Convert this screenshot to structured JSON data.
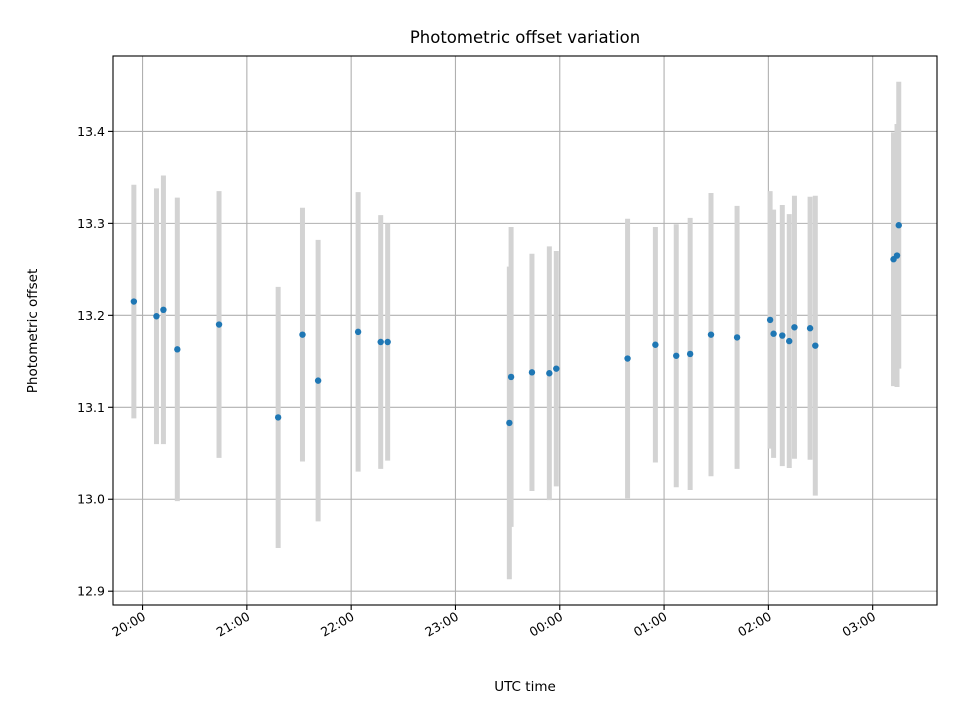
{
  "chart_data": {
    "type": "scatter",
    "title": "Photometric offset variation",
    "xlabel": "UTC time",
    "ylabel": "Photometric offset",
    "x_tick_labels": [
      "20:00",
      "21:00",
      "22:00",
      "23:00",
      "00:00",
      "01:00",
      "02:00",
      "03:00"
    ],
    "y_tick_labels": [
      "12.9",
      "13.0",
      "13.1",
      "13.2",
      "13.3",
      "13.4"
    ],
    "y_ticks": [
      12.9,
      13.0,
      13.1,
      13.2,
      13.3,
      13.4
    ],
    "ylim": [
      12.885,
      13.482
    ],
    "xlim": [
      "19:43",
      "03:37"
    ],
    "grid": true,
    "colors": {
      "point": "#1f77b4",
      "errorbar": "#d3d3d3",
      "grid": "#b0b0b0"
    },
    "points": [
      {
        "x": "19:55",
        "y": 13.215,
        "yerr": 0.127
      },
      {
        "x": "20:08",
        "y": 13.199,
        "yerr": 0.139
      },
      {
        "x": "20:12",
        "y": 13.206,
        "yerr": 0.146
      },
      {
        "x": "20:20",
        "y": 13.163,
        "yerr": 0.165
      },
      {
        "x": "20:44",
        "y": 13.19,
        "yerr": 0.145
      },
      {
        "x": "21:18",
        "y": 13.089,
        "yerr": 0.142
      },
      {
        "x": "21:32",
        "y": 13.179,
        "yerr": 0.138
      },
      {
        "x": "21:41",
        "y": 13.129,
        "yerr": 0.153
      },
      {
        "x": "22:04",
        "y": 13.182,
        "yerr": 0.152
      },
      {
        "x": "22:17",
        "y": 13.171,
        "yerr": 0.138
      },
      {
        "x": "22:21",
        "y": 13.171,
        "yerr": 0.129
      },
      {
        "x": "23:31",
        "y": 13.083,
        "yerr": 0.17
      },
      {
        "x": "23:32",
        "y": 13.133,
        "yerr": 0.163
      },
      {
        "x": "23:44",
        "y": 13.138,
        "yerr": 0.129
      },
      {
        "x": "23:54",
        "y": 13.137,
        "yerr": 0.138
      },
      {
        "x": "23:58",
        "y": 13.142,
        "yerr": 0.128
      },
      {
        "x": "00:39",
        "y": 13.153,
        "yerr": 0.152
      },
      {
        "x": "00:55",
        "y": 13.168,
        "yerr": 0.128
      },
      {
        "x": "01:07",
        "y": 13.156,
        "yerr": 0.143
      },
      {
        "x": "01:15",
        "y": 13.158,
        "yerr": 0.148
      },
      {
        "x": "01:27",
        "y": 13.179,
        "yerr": 0.154
      },
      {
        "x": "01:42",
        "y": 13.176,
        "yerr": 0.143
      },
      {
        "x": "02:01",
        "y": 13.195,
        "yerr": 0.14
      },
      {
        "x": "02:03",
        "y": 13.18,
        "yerr": 0.135
      },
      {
        "x": "02:08",
        "y": 13.178,
        "yerr": 0.142
      },
      {
        "x": "02:12",
        "y": 13.172,
        "yerr": 0.138
      },
      {
        "x": "02:15",
        "y": 13.187,
        "yerr": 0.143
      },
      {
        "x": "02:24",
        "y": 13.186,
        "yerr": 0.143
      },
      {
        "x": "02:27",
        "y": 13.167,
        "yerr": 0.163
      },
      {
        "x": "03:12",
        "y": 13.261,
        "yerr": 0.138
      },
      {
        "x": "03:14",
        "y": 13.265,
        "yerr": 0.143
      },
      {
        "x": "03:15",
        "y": 13.298,
        "yerr": 0.156
      }
    ]
  }
}
